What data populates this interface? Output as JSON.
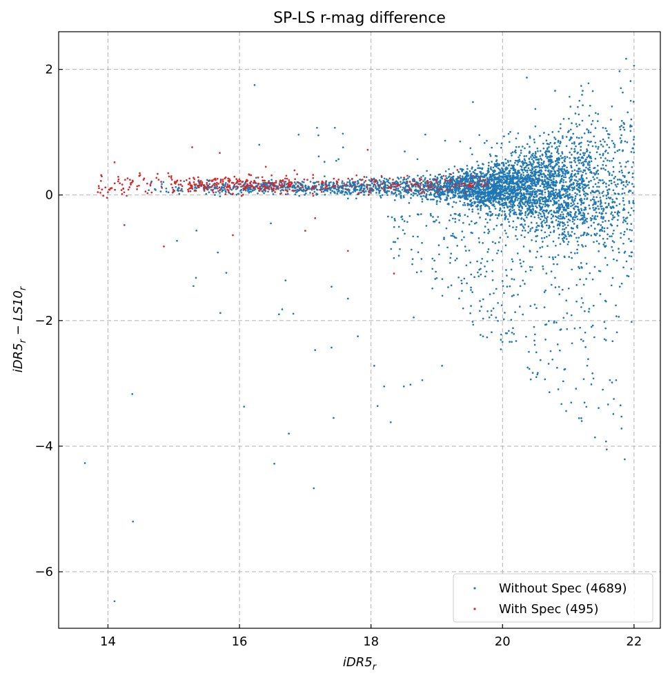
{
  "chart_data": {
    "type": "scatter",
    "title": "SP-LS r-mag difference",
    "xlabel": "iDR5",
    "xlabel_sub": "r",
    "ylabel": "iDR5",
    "ylabel_sub1": "r",
    "ylabel_mid": " − LS10",
    "ylabel_sub2": "r",
    "xlim": [
      13.25,
      22.4
    ],
    "ylim": [
      -6.9,
      2.6
    ],
    "xticks": [
      14,
      16,
      18,
      20,
      22
    ],
    "yticks": [
      -6,
      -4,
      -2,
      0,
      2
    ],
    "xtick_labels": [
      "14",
      "16",
      "18",
      "20",
      "22"
    ],
    "ytick_labels": [
      "−6",
      "−4",
      "−2",
      "0",
      "2"
    ],
    "grid": true,
    "legend_position": "bottom-right",
    "series": [
      {
        "name": "Without Spec (4689)",
        "color": "#1f77b4",
        "count": 4689,
        "generator": {
          "xmin": 14.6,
          "xmax": 22.0,
          "seed": 7
        },
        "outliers": [
          [
            13.65,
            -4.27
          ],
          [
            14.1,
            -6.47
          ],
          [
            14.37,
            -3.17
          ],
          [
            14.38,
            -5.2
          ],
          [
            16.23,
            1.75
          ],
          [
            15.3,
            -1.45
          ],
          [
            15.05,
            -0.73
          ],
          [
            15.8,
            -1.24
          ],
          [
            15.71,
            -1.88
          ],
          [
            16.07,
            -3.37
          ],
          [
            16.53,
            -4.28
          ],
          [
            16.75,
            -3.8
          ],
          [
            17.13,
            -4.67
          ],
          [
            17.15,
            -2.47
          ],
          [
            17.43,
            -3.55
          ],
          [
            17.8,
            -2.25
          ],
          [
            18.05,
            -2.72
          ],
          [
            18.1,
            -3.36
          ],
          [
            18.3,
            -3.62
          ],
          [
            18.2,
            -3.05
          ],
          [
            16.6,
            -1.9
          ],
          [
            16.65,
            -1.82
          ],
          [
            16.7,
            -1.36
          ],
          [
            17.4,
            -1.46
          ],
          [
            17.4,
            -2.43
          ],
          [
            17.65,
            -1.65
          ],
          [
            18.78,
            -2.95
          ],
          [
            18.6,
            -3.02
          ],
          [
            18.5,
            -3.05
          ],
          [
            16.9,
            0.96
          ],
          [
            17.2,
            0.95
          ],
          [
            17.45,
            1.07
          ],
          [
            19.55,
            1.48
          ],
          [
            19.8,
            -1.95
          ],
          [
            20.02,
            -1.98
          ],
          [
            20.37,
            1.87
          ],
          [
            20.8,
            1.66
          ],
          [
            21.22,
            1.66
          ],
          [
            21.65,
            1.2
          ],
          [
            21.78,
            1.97
          ],
          [
            21.88,
            2.17
          ],
          [
            22.0,
            2.06
          ],
          [
            21.8,
            1.7
          ],
          [
            21.95,
            1.5
          ],
          [
            20.5,
            1.37
          ],
          [
            16.3,
            0.8
          ],
          [
            18.65,
            -1.95
          ],
          [
            19.08,
            -2.72
          ]
        ]
      },
      {
        "name": "With Spec (495)",
        "color": "#d62728",
        "count": 495,
        "generator": {
          "xmin": 13.82,
          "xmax": 19.8,
          "seed": 23
        },
        "outliers": [
          [
            14.25,
            -0.48
          ],
          [
            14.85,
            -0.82
          ],
          [
            15.9,
            -0.64
          ],
          [
            17.0,
            -0.57
          ],
          [
            17.15,
            -0.37
          ],
          [
            17.65,
            -0.89
          ],
          [
            18.35,
            -1.25
          ],
          [
            17.95,
            0.72
          ],
          [
            15.28,
            0.76
          ],
          [
            15.7,
            0.67
          ],
          [
            14.1,
            0.52
          ],
          [
            16.4,
            0.45
          ]
        ]
      }
    ]
  }
}
